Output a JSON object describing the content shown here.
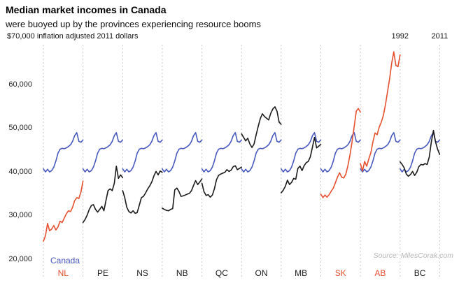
{
  "header": {
    "title": "Median market incomes in Canada",
    "subtitle": "were buoyed up by the provinces experiencing resource booms"
  },
  "axis": {
    "note": "$70,000 inflation adjusted 2011 dollars",
    "y_tick_labels": [
      "60,000",
      "50,000",
      "40,000",
      "30,000",
      "20,000"
    ]
  },
  "source": "Source: MilesCorak.com",
  "chart_data": {
    "type": "line",
    "title": "Median market incomes in Canada",
    "subtitle": "were buoyed up by the provinces experiencing resource booms",
    "unit_note": "$70,000 inflation adjusted 2011 dollars",
    "layout_hint": "ten small-multiple panels (one per province) separated by dashed vertical dividers; the blue Canada line is repeated inside every panel; x axis of each panel spans 1992-2011; no horizontal gridlines; legend via colored labels under panels",
    "x": [
      1992,
      1993,
      1994,
      1995,
      1996,
      1997,
      1998,
      1999,
      2000,
      2001,
      2002,
      2003,
      2004,
      2005,
      2006,
      2007,
      2008,
      2009,
      2010,
      2011
    ],
    "x_start_label": "1992",
    "x_end_label": "2011",
    "ylim": [
      20000,
      70000
    ],
    "y_tick_values": [
      60000,
      50000,
      40000,
      30000,
      20000
    ],
    "y_tick_labels": [
      "60,000",
      "50,000",
      "40,000",
      "30,000",
      "20,000"
    ],
    "colors": {
      "canada": "#4859bd",
      "boom": "#e5502f",
      "regular": "#1a1a1a",
      "grid": "#c7c7c7"
    },
    "canada": {
      "name": "Canada",
      "values": [
        40800,
        40100,
        40700,
        40100,
        40400,
        41200,
        42600,
        44400,
        45300,
        45500,
        45400,
        45600,
        45900,
        46300,
        47100,
        48400,
        49100,
        47100,
        46900,
        47400
      ]
    },
    "panels": [
      {
        "code": "NL",
        "boom": true,
        "values": [
          24200,
          25500,
          28300,
          26600,
          27000,
          27800,
          26800,
          27500,
          28800,
          28500,
          29500,
          30500,
          31200,
          31000,
          32000,
          33500,
          34200,
          34000,
          35500,
          38000
        ]
      },
      {
        "code": "PE",
        "boom": false,
        "values": [
          28500,
          29200,
          30200,
          31500,
          32400,
          32600,
          31500,
          30900,
          31500,
          32200,
          31200,
          33500,
          35800,
          36200,
          35800,
          37500,
          41400,
          38600,
          39400,
          38800
        ]
      },
      {
        "code": "NS",
        "boom": false,
        "values": [
          35800,
          34200,
          32000,
          31000,
          30700,
          31200,
          30600,
          30800,
          32500,
          34200,
          34500,
          35300,
          36200,
          36900,
          37800,
          39200,
          40200,
          39400,
          40300,
          40000
        ]
      },
      {
        "code": "NB",
        "boom": false,
        "values": [
          31800,
          31500,
          31300,
          31200,
          31500,
          31700,
          36000,
          36400,
          35600,
          34500,
          34600,
          34800,
          35000,
          35200,
          35800,
          37000,
          38100,
          37200,
          37800,
          38500
        ]
      },
      {
        "code": "QC",
        "boom": false,
        "values": [
          37500,
          35600,
          34700,
          34900,
          34300,
          34800,
          36200,
          38300,
          39300,
          39600,
          39800,
          40000,
          40600,
          40200,
          40500,
          41300,
          41500,
          40600,
          40900,
          41200
        ]
      },
      {
        "code": "ON",
        "boom": false,
        "values": [
          48800,
          48000,
          47200,
          47800,
          46500,
          45700,
          46500,
          48600,
          50500,
          52300,
          53400,
          52800,
          52400,
          52000,
          53500,
          54500,
          55000,
          54000,
          51500,
          51000
        ]
      },
      {
        "code": "MB",
        "boom": false,
        "values": [
          35300,
          35900,
          36800,
          38200,
          37200,
          37700,
          38600,
          38400,
          40900,
          41400,
          40400,
          41500,
          42200,
          42500,
          43600,
          45800,
          48000,
          45600,
          46000,
          46400
        ]
      },
      {
        "code": "SK",
        "boom": true,
        "values": [
          35000,
          34200,
          34800,
          34300,
          34900,
          35700,
          36400,
          37600,
          38900,
          39900,
          38900,
          38700,
          39600,
          41500,
          44000,
          47000,
          50500,
          54000,
          54600,
          53800
        ]
      },
      {
        "code": "AB",
        "boom": true,
        "values": [
          42000,
          40300,
          42500,
          41400,
          43000,
          44500,
          47000,
          49000,
          48600,
          50300,
          51500,
          53000,
          55500,
          58500,
          61500,
          65000,
          67600,
          64500,
          64200,
          66900
        ]
      },
      {
        "code": "BC",
        "boom": false,
        "values": [
          42400,
          41800,
          41000,
          39600,
          39100,
          39500,
          40200,
          39300,
          40000,
          41300,
          41800,
          41700,
          42000,
          41800,
          43500,
          47000,
          49600,
          47000,
          45300,
          44100
        ]
      }
    ]
  }
}
